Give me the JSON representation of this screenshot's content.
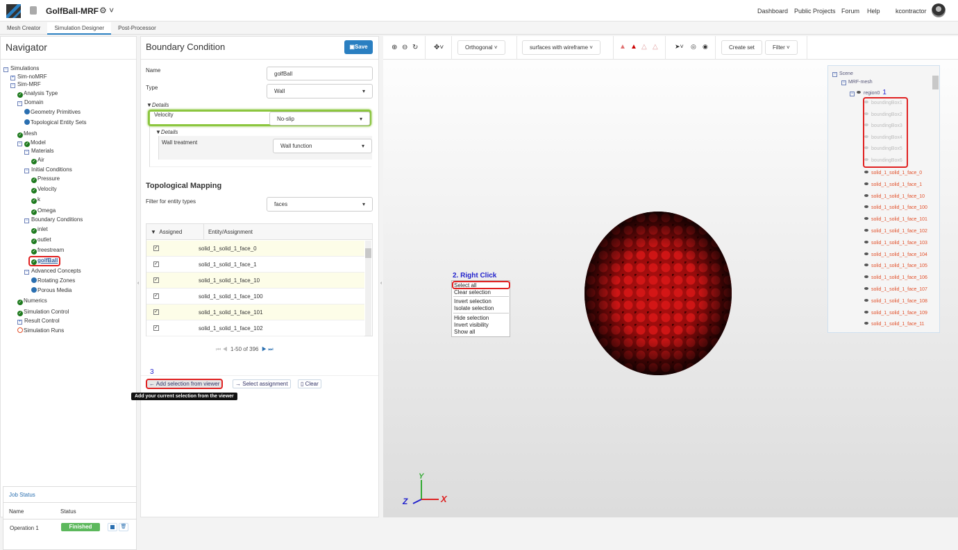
{
  "header": {
    "project_title": "GolfBall-MRF",
    "nav": [
      "Dashboard",
      "Public Projects",
      "Forum",
      "Help",
      "kcontractor"
    ],
    "icons": [
      "logo",
      "lock-icon",
      "gear-icon",
      "avatar"
    ]
  },
  "tabs": [
    "Mesh Creator",
    "Simulation Designer",
    "Post-Processor"
  ],
  "navigator": {
    "title": "Navigator",
    "tree": [
      {
        "label": "Simulations",
        "icon": "minus",
        "level": 0
      },
      {
        "label": "Sim-noMRF",
        "icon": "plus",
        "level": 1
      },
      {
        "label": "Sim-MRF",
        "icon": "minus",
        "level": 1
      },
      {
        "label": "Analysis Type",
        "icon": "check",
        "level": 2
      },
      {
        "label": "Domain",
        "icon": "minus",
        "level": 2
      },
      {
        "label": "Geometry Primitives",
        "icon": "dot",
        "level": 3
      },
      {
        "label": "Topological Entity Sets",
        "icon": "dot",
        "level": 3
      },
      {
        "label": "Mesh",
        "icon": "check",
        "level": 2
      },
      {
        "label": "Model",
        "icon": "minus-check",
        "level": 2
      },
      {
        "label": "Materials",
        "icon": "minus",
        "level": 3
      },
      {
        "label": "Air",
        "icon": "check",
        "level": 4
      },
      {
        "label": "Initial Conditions",
        "icon": "minus",
        "level": 3
      },
      {
        "label": "Pressure",
        "icon": "check",
        "level": 4
      },
      {
        "label": "Velocity",
        "icon": "check",
        "level": 4
      },
      {
        "label": "k",
        "icon": "check",
        "level": 4
      },
      {
        "label": "Omega",
        "icon": "check",
        "level": 4
      },
      {
        "label": "Boundary Conditions",
        "icon": "minus",
        "level": 3
      },
      {
        "label": "inlet",
        "icon": "check",
        "level": 4
      },
      {
        "label": "outlet",
        "icon": "check",
        "level": 4
      },
      {
        "label": "freestream",
        "icon": "check",
        "level": 4
      },
      {
        "label": "golfBall",
        "icon": "check",
        "level": 4,
        "selected": true
      },
      {
        "label": "Advanced Concepts",
        "icon": "minus",
        "level": 3
      },
      {
        "label": "Rotating Zones",
        "icon": "dot",
        "level": 4
      },
      {
        "label": "Porous Media",
        "icon": "dot",
        "level": 4
      },
      {
        "label": "Numerics",
        "icon": "check",
        "level": 2
      },
      {
        "label": "Simulation Control",
        "icon": "check",
        "level": 2
      },
      {
        "label": "Result Control",
        "icon": "plus",
        "level": 2
      },
      {
        "label": "Simulation Runs",
        "icon": "ring",
        "level": 2
      }
    ]
  },
  "job_status": {
    "title": "Job Status",
    "col_name": "Name",
    "col_status": "Status",
    "row_name": "Operation 1",
    "row_status": "Finished",
    "status_color": "#5cb85c"
  },
  "bc": {
    "title": "Boundary Condition",
    "save": "Save",
    "name_label": "Name",
    "name_value": "golfBall",
    "type_label": "Type",
    "type_value": "Wall",
    "details": "Details",
    "velocity_label": "Velocity",
    "velocity_value": "No-slip",
    "details2": "Details",
    "wall_label": "Wall treatment",
    "wall_value": "Wall function",
    "topo_title": "Topological Mapping",
    "filter_label": "Filter for entity types",
    "filter_value": "faces",
    "col_assigned": "Assigned",
    "col_entity": "Entity/Assignment",
    "rows": [
      "solid_1_solid_1_face_0",
      "solid_1_solid_1_face_1",
      "solid_1_solid_1_face_10",
      "solid_1_solid_1_face_100",
      "solid_1_solid_1_face_101",
      "solid_1_solid_1_face_102"
    ],
    "pagination": "1-50 of 396",
    "step3": "3",
    "add_btn": "Add selection from viewer",
    "select_btn": "Select assignment",
    "clear_btn": "Clear",
    "tooltip": "Add your current selection from the viewer"
  },
  "viewer": {
    "toolbar": {
      "projection": "Orthogonal",
      "render_mode": "surfaces with wireframe",
      "create_set": "Create set",
      "filter": "Filter"
    },
    "scene": {
      "root": "Scene",
      "mesh": "MRF-mesh",
      "region": "region0",
      "step1": "1",
      "boxes": [
        "boundingBox1",
        "boundingBox2",
        "boundingBox3",
        "boundingBox4",
        "boundingBox5",
        "boundingBox6"
      ],
      "faces": [
        "solid_1_solid_1_face_0",
        "solid_1_solid_1_face_1",
        "solid_1_solid_1_face_10",
        "solid_1_solid_1_face_100",
        "solid_1_solid_1_face_101",
        "solid_1_solid_1_face_102",
        "solid_1_solid_1_face_103",
        "solid_1_solid_1_face_104",
        "solid_1_solid_1_face_105",
        "solid_1_solid_1_face_106",
        "solid_1_solid_1_face_107",
        "solid_1_solid_1_face_108",
        "solid_1_solid_1_face_109",
        "solid_1_solid_1_face_11"
      ]
    },
    "context_title": "2. Right Click",
    "context_menu": [
      "Select all",
      "Clear selection",
      "Invert selection",
      "Isolate selection",
      "Hide selection",
      "Invert visibility",
      "Show all"
    ],
    "axes": {
      "x": "X",
      "y": "Y",
      "z": "Z"
    }
  },
  "colors": {
    "accent": "#2a7fc1",
    "highlight_red": "#e02020",
    "highlight_green": "#8cc63f",
    "face_orange": "#e2502a"
  }
}
